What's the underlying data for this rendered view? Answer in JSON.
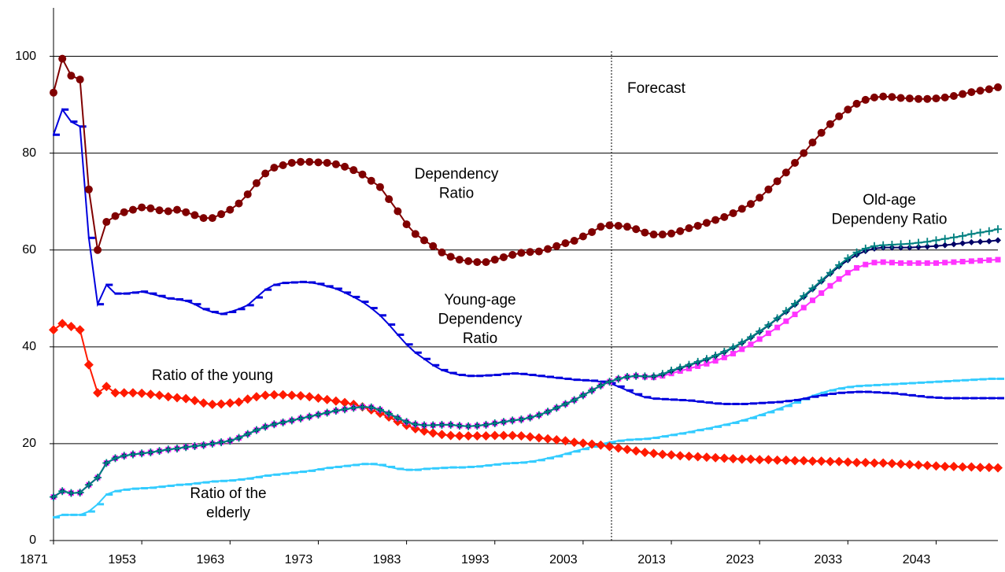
{
  "chart_data": {
    "type": "line",
    "categories": [
      "1871",
      null,
      null,
      null,
      null,
      null,
      null,
      null,
      null,
      null,
      "1953",
      null,
      null,
      null,
      null,
      null,
      null,
      null,
      null,
      null,
      "1963",
      null,
      null,
      null,
      null,
      null,
      null,
      null,
      null,
      null,
      "1973",
      null,
      null,
      null,
      null,
      null,
      null,
      null,
      null,
      null,
      "1983",
      null,
      null,
      null,
      null,
      null,
      null,
      null,
      null,
      null,
      "1993",
      null,
      null,
      null,
      null,
      null,
      null,
      null,
      null,
      null,
      "2003",
      null,
      null,
      null,
      null,
      null,
      null,
      null,
      null,
      null,
      "2013",
      null,
      null,
      null,
      null,
      null,
      null,
      null,
      null,
      null,
      "2023",
      null,
      null,
      null,
      null,
      null,
      null,
      null,
      null,
      null,
      "2033",
      null,
      null,
      null,
      null,
      null,
      null,
      null,
      null,
      null,
      "2043",
      null,
      null,
      null,
      null,
      null,
      null,
      null
    ],
    "ylim": [
      0,
      110
    ],
    "yticks": [
      0,
      20,
      40,
      60,
      80,
      100
    ],
    "grid": true,
    "annotations": [
      {
        "lines": [
          "Forecast"
        ]
      },
      {
        "lines": [
          "Dependency",
          "Ratio"
        ]
      },
      {
        "lines": [
          "Young-age",
          "Dependency",
          "Ratio"
        ]
      },
      {
        "lines": [
          "Ratio of the young"
        ]
      },
      {
        "lines": [
          "Old-age",
          "Dependeny Ratio"
        ]
      },
      {
        "lines": [
          "Ratio of the",
          "elderly"
        ]
      }
    ],
    "series": [
      {
        "color": "#33ccff",
        "marker": "dash",
        "values": [
          4.8,
          5.3,
          5.3,
          5.3,
          6,
          7.5,
          9.5,
          10.2,
          10.5,
          10.7,
          10.8,
          10.9,
          11.1,
          11.3,
          11.5,
          11.6,
          11.8,
          12,
          12.2,
          12.3,
          12.4,
          12.6,
          12.8,
          13.1,
          13.4,
          13.6,
          13.8,
          14,
          14.2,
          14.4,
          14.7,
          15,
          15.2,
          15.4,
          15.6,
          15.8,
          15.8,
          15.6,
          15.2,
          14.8,
          14.6,
          14.6,
          14.8,
          14.9,
          15,
          15.1,
          15.1,
          15.2,
          15.3,
          15.5,
          15.7,
          15.9,
          16,
          16.1,
          16.3,
          16.6,
          17,
          17.4,
          17.9,
          18.4,
          18.9,
          19.4,
          19.9,
          20.3,
          20.6,
          20.8,
          20.9,
          21,
          21.2,
          21.5,
          21.8,
          22.1,
          22.4,
          22.8,
          23.1,
          23.5,
          23.9,
          24.3,
          24.8,
          25.3,
          25.9,
          26.5,
          27.1,
          27.8,
          28.5,
          29.2,
          29.9,
          30.5,
          31,
          31.4,
          31.7,
          31.9,
          32,
          32.1,
          32.2,
          32.3,
          32.4,
          32.5,
          32.6,
          32.7,
          32.8,
          32.9,
          33,
          33.1,
          33.2,
          33.3,
          33.4,
          33.4
        ]
      },
      {
        "color": "#0000dd",
        "marker": "dash",
        "values": [
          83.8,
          89,
          86.5,
          85.5,
          62.5,
          48.8,
          52.8,
          51,
          51,
          51.2,
          51.4,
          51,
          50.5,
          50,
          49.8,
          49.5,
          48.8,
          47.8,
          47.2,
          46.8,
          47.2,
          47.8,
          48.6,
          50.2,
          51.8,
          52.8,
          53.2,
          53.3,
          53.4,
          53.3,
          53,
          52.5,
          52,
          51.2,
          50.3,
          49.3,
          48,
          46.5,
          44.6,
          42.5,
          40.5,
          38.8,
          37.5,
          36.2,
          35.2,
          34.6,
          34.2,
          34,
          34,
          34.1,
          34.2,
          34.4,
          34.5,
          34.4,
          34.2,
          34,
          33.8,
          33.6,
          33.4,
          33.2,
          33.1,
          33,
          32.8,
          32.5,
          31.8,
          31,
          30.2,
          29.6,
          29.3,
          29.2,
          29.1,
          29,
          28.9,
          28.7,
          28.5,
          28.3,
          28.2,
          28.2,
          28.2,
          28.3,
          28.4,
          28.5,
          28.6,
          28.8,
          29,
          29.3,
          29.7,
          30,
          30.3,
          30.5,
          30.6,
          30.7,
          30.7,
          30.6,
          30.5,
          30.4,
          30.2,
          30,
          29.8,
          29.6,
          29.5,
          29.4,
          29.4,
          29.4,
          29.4,
          29.4,
          29.4,
          29.4
        ]
      },
      {
        "color": "#ff1a00",
        "marker": "diamond",
        "values": [
          43.5,
          44.8,
          44.2,
          43.5,
          36.3,
          30.5,
          31.8,
          30.5,
          30.5,
          30.5,
          30.4,
          30.2,
          30,
          29.7,
          29.5,
          29.3,
          28.9,
          28.4,
          28.1,
          28.2,
          28.4,
          28.6,
          29.2,
          29.7,
          30,
          30.1,
          30.1,
          30,
          29.9,
          29.7,
          29.4,
          29.1,
          28.8,
          28.5,
          28.1,
          27.6,
          27,
          26.3,
          25.5,
          24.6,
          23.8,
          23.1,
          22.6,
          22.2,
          21.9,
          21.7,
          21.6,
          21.6,
          21.6,
          21.6,
          21.7,
          21.7,
          21.7,
          21.6,
          21.4,
          21.2,
          21,
          20.8,
          20.6,
          20.3,
          20.1,
          19.9,
          19.7,
          19.4,
          19.1,
          18.8,
          18.5,
          18.2,
          18,
          17.8,
          17.7,
          17.5,
          17.4,
          17.3,
          17.2,
          17.1,
          17,
          16.9,
          16.8,
          16.8,
          16.7,
          16.7,
          16.6,
          16.6,
          16.5,
          16.5,
          16.4,
          16.4,
          16.3,
          16.3,
          16.2,
          16.1,
          16.1,
          16,
          16,
          15.9,
          15.8,
          15.7,
          15.6,
          15.5,
          15.4,
          15.3,
          15.3,
          15.2,
          15.2,
          15.1,
          15.1,
          15
        ]
      },
      {
        "color": "#ff33ff",
        "marker": "square",
        "values": [
          9,
          10.2,
          9.8,
          9.9,
          11.5,
          13,
          16,
          17,
          17.5,
          17.8,
          18,
          18.2,
          18.5,
          18.8,
          19,
          19.3,
          19.5,
          19.7,
          20,
          20.3,
          20.6,
          21.2,
          22,
          22.8,
          23.5,
          24,
          24.4,
          24.8,
          25.2,
          25.6,
          26,
          26.4,
          26.8,
          27.1,
          27.4,
          27.6,
          27.5,
          27,
          26.2,
          25.3,
          24.5,
          24,
          23.8,
          23.8,
          23.9,
          23.9,
          23.7,
          23.6,
          23.7,
          23.9,
          24.2,
          24.5,
          24.8,
          25,
          25.4,
          25.9,
          26.6,
          27.4,
          28.2,
          29,
          30,
          31,
          32,
          32.8,
          33.4,
          33.8,
          34,
          33.8,
          33.7,
          34,
          34.5,
          35,
          35.5,
          36,
          36.5,
          37.1,
          37.8,
          38.6,
          39.5,
          40.5,
          41.6,
          42.8,
          44,
          45.3,
          46.7,
          48.1,
          49.6,
          51.1,
          52.6,
          54,
          55.3,
          56.3,
          57,
          57.4,
          57.5,
          57.4,
          57.3,
          57.3,
          57.3,
          57.3,
          57.3,
          57.4,
          57.5,
          57.6,
          57.7,
          57.8,
          57.9,
          58
        ]
      },
      {
        "color": "#000066",
        "marker": "smalldiamond",
        "values": [
          9,
          10.2,
          9.8,
          9.9,
          11.5,
          13,
          16,
          17,
          17.5,
          17.8,
          18,
          18.2,
          18.5,
          18.8,
          19,
          19.3,
          19.5,
          19.7,
          20,
          20.3,
          20.6,
          21.2,
          22,
          22.8,
          23.5,
          24,
          24.4,
          24.8,
          25.2,
          25.6,
          26,
          26.4,
          26.8,
          27.1,
          27.4,
          27.6,
          27.5,
          27,
          26.2,
          25.3,
          24.5,
          24,
          23.8,
          23.8,
          23.9,
          23.9,
          23.7,
          23.6,
          23.7,
          23.9,
          24.2,
          24.5,
          24.8,
          25,
          25.4,
          25.9,
          26.6,
          27.4,
          28.2,
          29,
          30,
          31,
          32,
          32.8,
          33.4,
          33.8,
          34,
          33.9,
          33.9,
          34.3,
          35,
          35.6,
          36.2,
          36.8,
          37.4,
          38.1,
          38.9,
          39.8,
          40.8,
          41.9,
          43.1,
          44.4,
          45.8,
          47.2,
          48.7,
          50.3,
          51.9,
          53.5,
          55.1,
          56.6,
          57.9,
          59,
          59.8,
          60.3,
          60.5,
          60.5,
          60.5,
          60.5,
          60.6,
          60.7,
          60.8,
          61,
          61.2,
          61.4,
          61.6,
          61.7,
          61.8,
          62
        ]
      },
      {
        "color": "#008080",
        "marker": "plus",
        "values": [
          9,
          10.2,
          9.8,
          9.9,
          11.5,
          13,
          16,
          17,
          17.5,
          17.8,
          18,
          18.2,
          18.5,
          18.8,
          19,
          19.3,
          19.5,
          19.7,
          20,
          20.3,
          20.6,
          21.2,
          22,
          22.8,
          23.5,
          24,
          24.4,
          24.8,
          25.2,
          25.6,
          26,
          26.4,
          26.8,
          27.1,
          27.4,
          27.6,
          27.5,
          27,
          26.2,
          25.3,
          24.5,
          24,
          23.8,
          23.8,
          23.9,
          23.9,
          23.7,
          23.6,
          23.7,
          23.9,
          24.2,
          24.5,
          24.8,
          25,
          25.4,
          25.9,
          26.6,
          27.4,
          28.2,
          29,
          30,
          31,
          32,
          32.8,
          33.4,
          33.8,
          34,
          33.9,
          33.9,
          34.4,
          35.1,
          35.7,
          36.3,
          36.9,
          37.5,
          38.2,
          39,
          39.9,
          40.9,
          42,
          43.2,
          44.5,
          45.9,
          47.4,
          48.9,
          50.5,
          52.1,
          53.7,
          55.3,
          56.9,
          58.3,
          59.5,
          60.3,
          60.8,
          61,
          61.1,
          61.2,
          61.3,
          61.5,
          61.7,
          62,
          62.3,
          62.6,
          62.9,
          63.3,
          63.6,
          63.9,
          64.3
        ]
      },
      {
        "color": "#800000",
        "marker": "circle",
        "values": [
          92.5,
          99.5,
          96,
          95.2,
          72.5,
          60,
          65.8,
          67,
          67.8,
          68.3,
          68.8,
          68.6,
          68.2,
          68,
          68.3,
          67.8,
          67.2,
          66.6,
          66.6,
          67.4,
          68.3,
          69.6,
          71.5,
          73.8,
          75.8,
          77,
          77.5,
          78,
          78.2,
          78.2,
          78.1,
          78,
          77.7,
          77.2,
          76.5,
          75.6,
          74.3,
          73,
          70.5,
          68,
          65.3,
          63.3,
          62,
          60.8,
          59.5,
          58.6,
          58,
          57.7,
          57.5,
          57.5,
          58,
          58.5,
          59,
          59.4,
          59.6,
          59.7,
          60.2,
          60.8,
          61.4,
          61.9,
          62.8,
          63.7,
          64.8,
          65.1,
          65,
          64.8,
          64.3,
          63.6,
          63.2,
          63.2,
          63.4,
          63.9,
          64.5,
          65,
          65.6,
          66.2,
          66.8,
          67.6,
          68.5,
          69.5,
          70.8,
          72.5,
          74.2,
          76,
          78,
          80,
          82.2,
          84.2,
          86,
          87.6,
          89,
          90.2,
          91,
          91.5,
          91.7,
          91.6,
          91.4,
          91.3,
          91.2,
          91.2,
          91.3,
          91.5,
          91.8,
          92.2,
          92.6,
          92.9,
          93.2,
          93.6
        ]
      }
    ]
  }
}
